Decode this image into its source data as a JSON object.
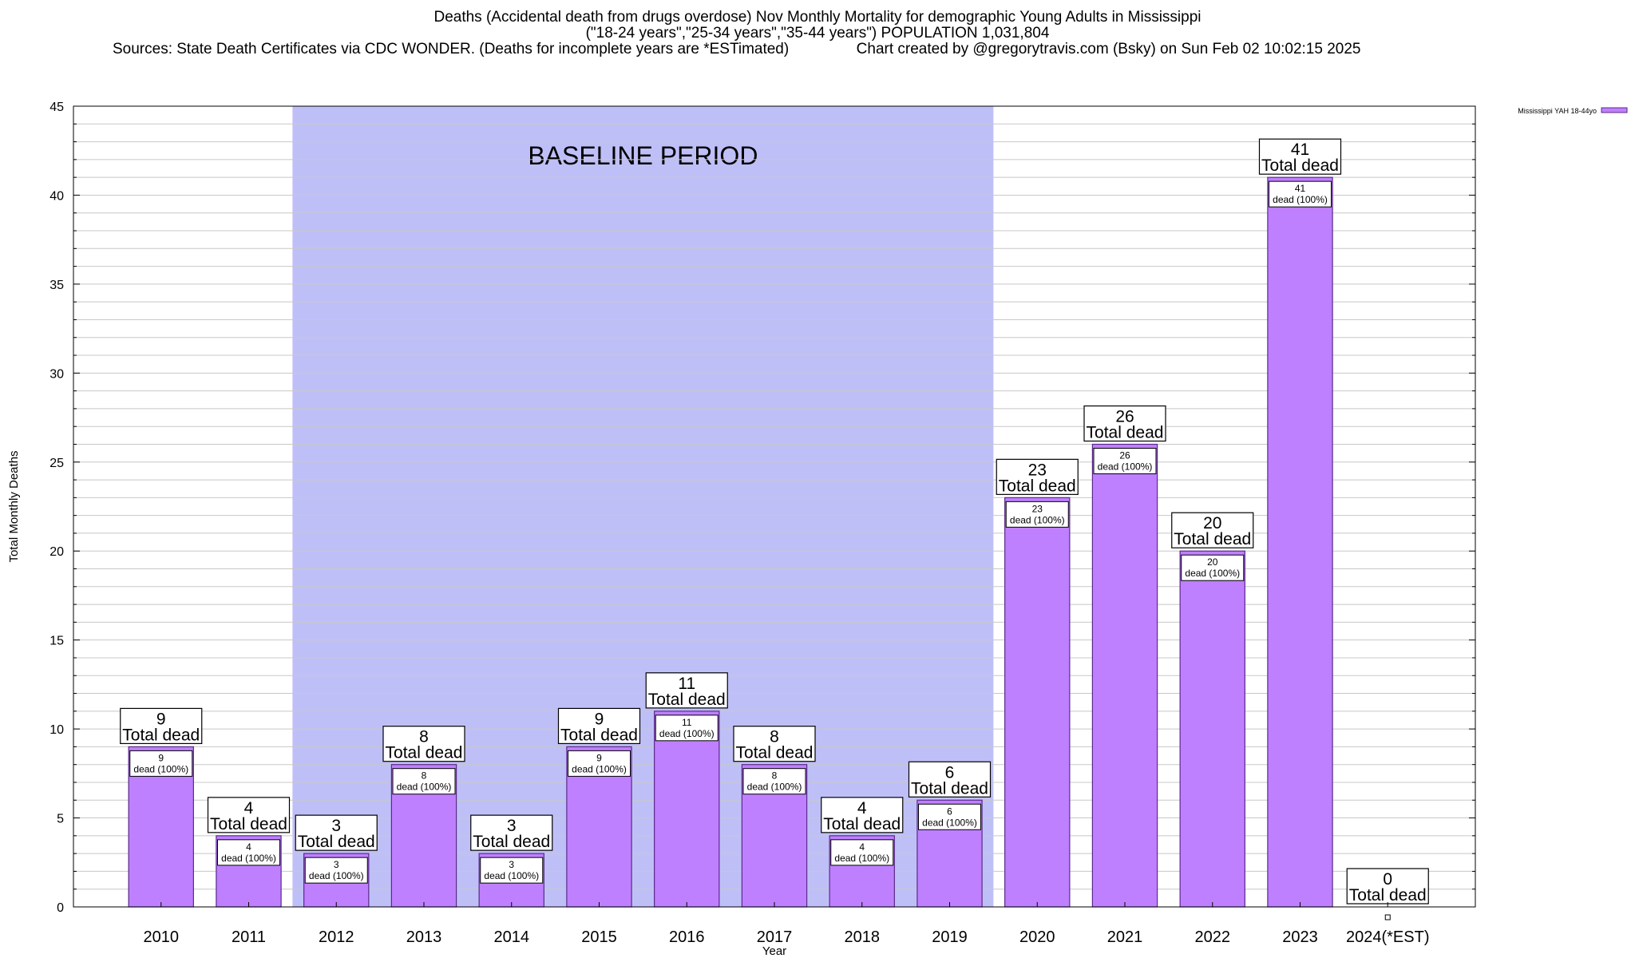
{
  "title_lines": [
    "Deaths (Accidental death from drugs overdose) Nov Monthly Mortality for demographic Young Adults in Mississippi",
    "(\"18-24 years\",\"25-34 years\",\"35-44 years\") POPULATION 1,031,804",
    "Sources: State Death Certificates via CDC WONDER. (Deaths for incomplete years are *ESTimated)                Chart created by @gregorytravis.com (Bsky) on Sun Feb 02 10:02:15 2025"
  ],
  "colors": {
    "bar_fill": "#bf80ff",
    "bar_stroke": "#5a2a8a",
    "baseline_band": "#bfbff8",
    "grid": "#c8c8c8",
    "axis": "#000000"
  },
  "chart_data": {
    "type": "bar",
    "xlabel": "Year",
    "ylabel": "Total Monthly Deaths",
    "ylim": [
      0,
      45
    ],
    "yticks": [
      0,
      5,
      10,
      15,
      20,
      25,
      30,
      35,
      40,
      45
    ],
    "grid": true,
    "legend": {
      "position": "top-right",
      "entries": [
        "Mississippi YAH 18-44yo"
      ]
    },
    "categories": [
      "2010",
      "2011",
      "2012",
      "2013",
      "2014",
      "2015",
      "2016",
      "2017",
      "2018",
      "2019",
      "2020",
      "2021",
      "2022",
      "2023",
      "2024(*EST)"
    ],
    "series": [
      {
        "name": "Mississippi YAH 18-44yo",
        "values": [
          9,
          4,
          3,
          8,
          3,
          9,
          11,
          8,
          4,
          6,
          23,
          26,
          20,
          41,
          0
        ]
      }
    ],
    "baseline_band": {
      "label": "BASELINE PERIOD",
      "from_category": "2012",
      "to_category": "2019"
    },
    "total_label": "Total dead",
    "inner_label_suffix": "dead (100%)"
  }
}
